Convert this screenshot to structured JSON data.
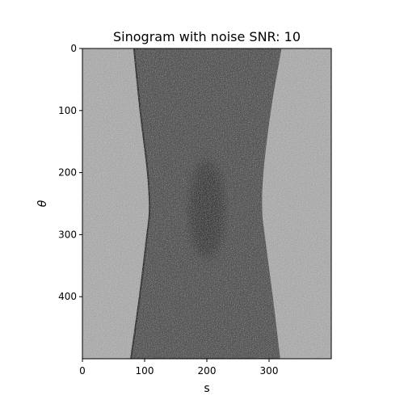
{
  "chart_data": {
    "type": "heatmap",
    "title": "Sinogram with noise SNR: 10",
    "xlabel": "s",
    "ylabel": "θ",
    "xlim": [
      0,
      400
    ],
    "ylim": [
      500,
      0
    ],
    "x_ticks": [
      0,
      100,
      200,
      300
    ],
    "y_ticks": [
      0,
      100,
      200,
      300,
      400
    ],
    "x_tick_labels": [
      "0",
      "100",
      "200",
      "300"
    ],
    "y_tick_labels": [
      "0",
      "100",
      "200",
      "300",
      "400"
    ],
    "colormap": "gray",
    "noise": "speckle noise at SNR 10",
    "regions": [
      {
        "name": "background",
        "intensity": 0.68
      },
      {
        "name": "object",
        "intensity": 0.34
      },
      {
        "name": "dark-center",
        "intensity": 0.26
      }
    ],
    "object_boundary": {
      "theta": [
        0,
        100,
        200,
        260,
        300,
        400,
        500
      ],
      "left_s": [
        83,
        93,
        105,
        108,
        104,
        92,
        78
      ],
      "right_s": [
        320,
        303,
        291,
        289,
        293,
        306,
        318
      ]
    },
    "dark_center": {
      "s": 200,
      "theta": 260
    }
  }
}
